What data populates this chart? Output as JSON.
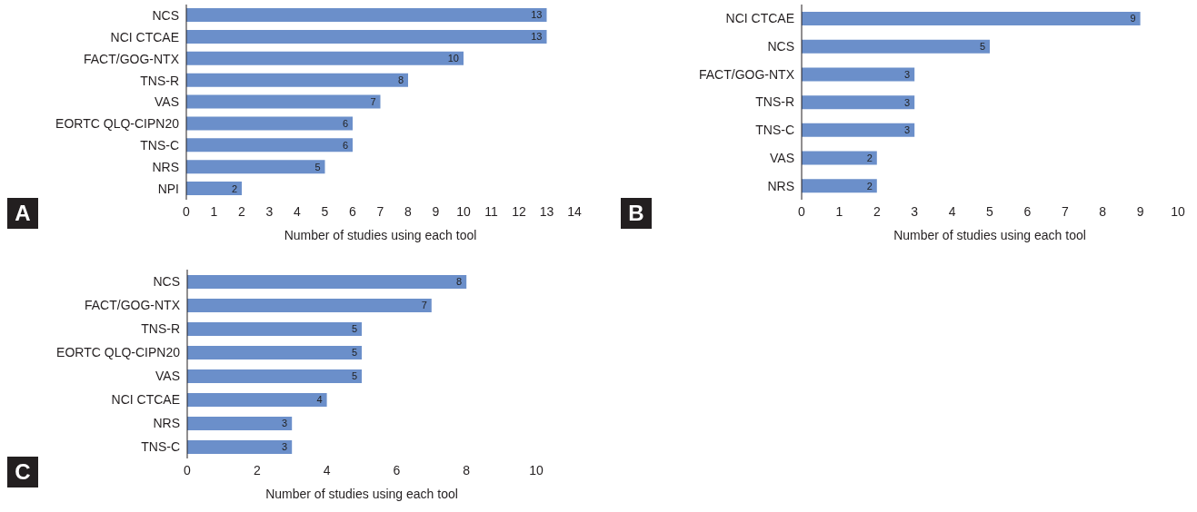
{
  "chart_data": [
    {
      "type": "bar",
      "orientation": "horizontal",
      "categories": [
        "NCS",
        "NCI CTCAE",
        "FACT/GOG-NTX",
        "TNS-R",
        "VAS",
        "EORTC QLQ-CIPN20",
        "TNS-C",
        "NRS",
        "NPI"
      ],
      "values": [
        13,
        13,
        10,
        8,
        7,
        6,
        6,
        5,
        2
      ],
      "color": "#6b8fca",
      "xlim": [
        0,
        14
      ],
      "xticks": [
        0,
        1,
        2,
        3,
        4,
        5,
        6,
        7,
        8,
        9,
        10,
        11,
        12,
        13,
        14
      ],
      "xlabel": "Number of studies using each tool",
      "data_labels": true,
      "grid": false,
      "annotations": [
        "A"
      ]
    },
    {
      "type": "bar",
      "orientation": "horizontal",
      "categories": [
        "NCI CTCAE",
        "NCS",
        "FACT/GOG-NTX",
        "TNS-R",
        "TNS-C",
        "VAS",
        "NRS"
      ],
      "values": [
        9,
        5,
        3,
        3,
        3,
        2,
        2
      ],
      "color": "#6b8fca",
      "xlim": [
        0,
        10
      ],
      "xticks": [
        0,
        1,
        2,
        3,
        4,
        5,
        6,
        7,
        8,
        9,
        10
      ],
      "xlabel": "Number of studies using each tool",
      "data_labels": true,
      "grid": false,
      "annotations": [
        "B"
      ]
    },
    {
      "type": "bar",
      "orientation": "horizontal",
      "categories": [
        "NCS",
        "FACT/GOG-NTX",
        "TNS-R",
        "EORTC QLQ-CIPN20",
        "VAS",
        "NCI CTCAE",
        "NRS",
        "TNS-C"
      ],
      "values": [
        8,
        7,
        5,
        5,
        5,
        4,
        3,
        3
      ],
      "color": "#6b8fca",
      "xlim": [
        0,
        10
      ],
      "xticks": [
        0,
        2,
        4,
        6,
        8,
        10
      ],
      "xlabel": "Number of studies using each tool",
      "data_labels": true,
      "grid": false,
      "annotations": [
        "C"
      ]
    }
  ]
}
